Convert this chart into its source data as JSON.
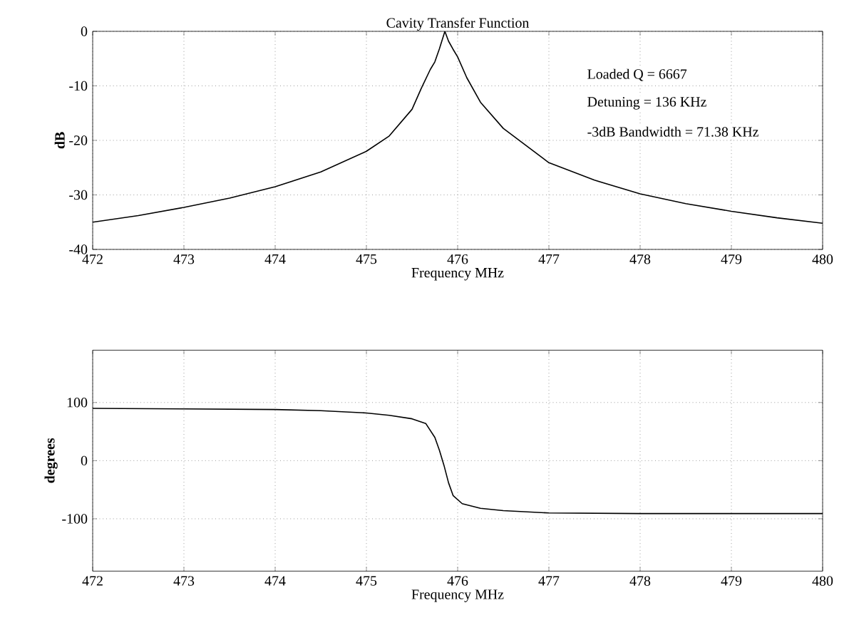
{
  "chart_data": [
    {
      "type": "line",
      "title": "Cavity Transfer Function",
      "xlabel": "Frequency MHz",
      "ylabel": "dB",
      "x": [
        472,
        472.5,
        473,
        473.5,
        474,
        474.5,
        475,
        475.25,
        475.5,
        475.6,
        475.7,
        475.75,
        475.8,
        475.86,
        475.9,
        475.95,
        476,
        476.1,
        476.25,
        476.5,
        477,
        477.5,
        478,
        478.5,
        479,
        479.5,
        480
      ],
      "series": [
        {
          "color": "#000000",
          "values": [
            -35,
            -33.8,
            -32.3,
            -30.6,
            -28.5,
            -25.8,
            -22,
            -19.2,
            -14.3,
            -10.5,
            -7,
            -5.6,
            -3.2,
            0,
            -1.8,
            -3.3,
            -4.7,
            -8.5,
            -13,
            -17.8,
            -24.1,
            -27.3,
            -29.8,
            -31.6,
            -33,
            -34.2,
            -35.2
          ]
        }
      ],
      "xlim": [
        472,
        480
      ],
      "ylim": [
        -40,
        0
      ],
      "xticks": [
        472,
        473,
        474,
        475,
        476,
        477,
        478,
        479,
        480
      ],
      "yticks": [
        -40,
        -30,
        -20,
        -10,
        0
      ],
      "grid": true,
      "marker": "none",
      "line_style": "solid",
      "annotations": [
        "Loaded Q = 6667",
        "Detuning = 136 KHz",
        "-3dB Bandwidth =  71.38 KHz"
      ]
    },
    {
      "type": "line",
      "xlabel": "Frequency MHz",
      "ylabel": "degrees",
      "x": [
        472,
        473,
        474,
        474.5,
        475,
        475.25,
        475.5,
        475.65,
        475.75,
        475.8,
        475.85,
        475.9,
        475.95,
        476.05,
        476.25,
        476.5,
        477,
        478,
        479,
        480
      ],
      "series": [
        {
          "color": "#000000",
          "values": [
            90,
            89,
            88,
            86,
            82,
            78,
            72,
            64,
            40,
            18,
            -8,
            -38,
            -60,
            -74,
            -82,
            -86,
            -90,
            -91,
            -91,
            -91
          ]
        }
      ],
      "xlim": [
        472,
        480
      ],
      "ylim": [
        -190,
        190
      ],
      "xticks": [
        472,
        473,
        474,
        475,
        476,
        477,
        478,
        479,
        480
      ],
      "yticks": [
        -100,
        0,
        100
      ],
      "grid": true,
      "marker": "none",
      "line_style": "solid"
    }
  ]
}
